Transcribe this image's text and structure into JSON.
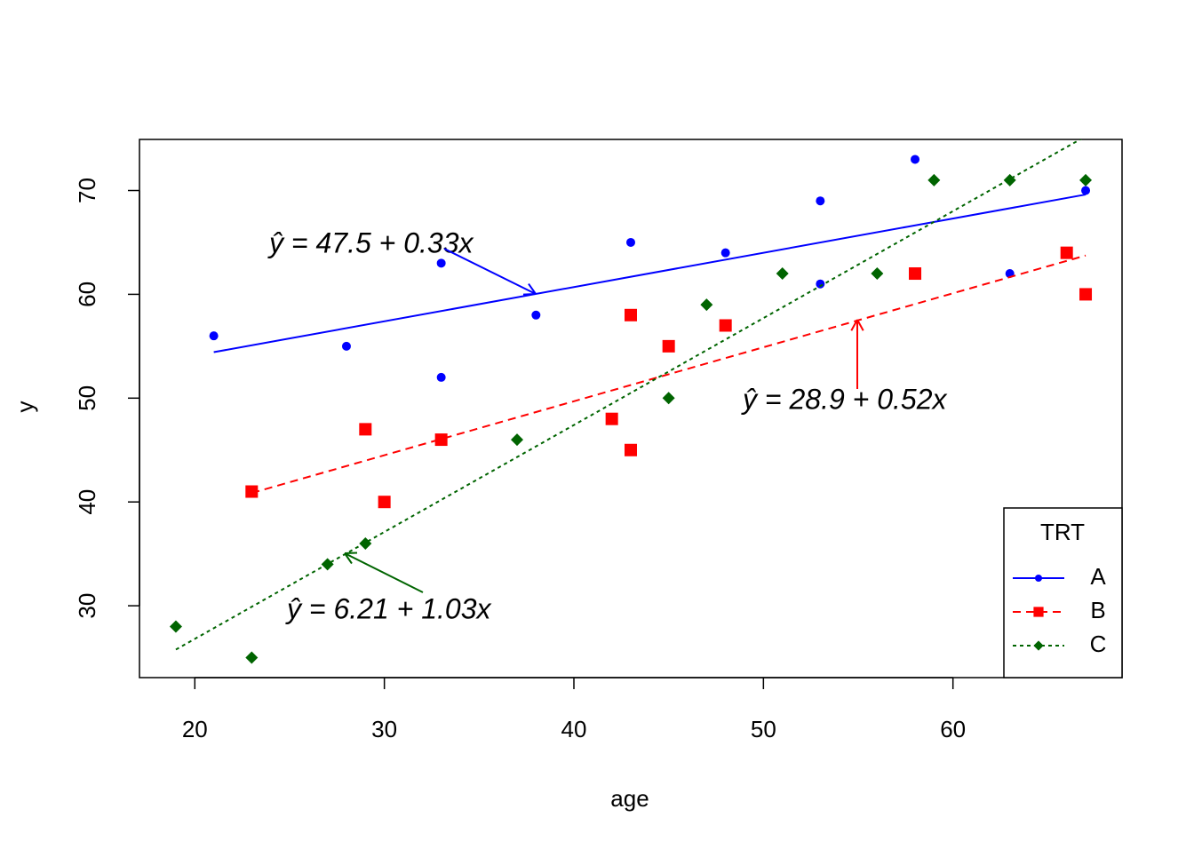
{
  "chart_data": {
    "type": "scatter",
    "x_label": "age",
    "y_label": "y",
    "xlim": [
      17.08,
      68.92
    ],
    "ylim": [
      23.08,
      74.92
    ],
    "xticks": [
      20,
      30,
      40,
      50,
      60
    ],
    "yticks": [
      30,
      40,
      50,
      60,
      70
    ],
    "legend": {
      "title": "TRT",
      "position": "bottom-right"
    },
    "series": [
      {
        "name": "A",
        "color": "#0000ff",
        "marker": "circle",
        "linestyle": "solid",
        "x": [
          21,
          28,
          33,
          33,
          38,
          43,
          48,
          53,
          53,
          58,
          63,
          67
        ],
        "values": [
          56,
          55,
          63,
          52,
          58,
          65,
          64,
          69,
          61,
          73,
          62,
          70
        ],
        "fit": {
          "intercept": 47.5,
          "slope": 0.33,
          "label": "ŷ = 47.5 + 0.33x"
        }
      },
      {
        "name": "B",
        "color": "#ff0000",
        "marker": "square",
        "linestyle": "dashed",
        "x": [
          23,
          29,
          30,
          33,
          42,
          43,
          43,
          45,
          48,
          58,
          66,
          67
        ],
        "values": [
          41,
          47,
          40,
          46,
          48,
          58,
          45,
          55,
          57,
          62,
          64,
          60
        ],
        "fit": {
          "intercept": 28.9,
          "slope": 0.52,
          "label": "ŷ = 28.9 + 0.52x"
        }
      },
      {
        "name": "C",
        "color": "#006400",
        "marker": "diamond",
        "linestyle": "dotted",
        "x": [
          19,
          23,
          27,
          29,
          37,
          45,
          47,
          51,
          56,
          59,
          63,
          67
        ],
        "values": [
          28,
          25,
          34,
          36,
          46,
          50,
          59,
          62,
          62,
          71,
          71,
          71
        ],
        "fit": {
          "intercept": 6.21,
          "slope": 1.03,
          "label": "ŷ = 6.21 + 1.03x"
        }
      }
    ]
  }
}
